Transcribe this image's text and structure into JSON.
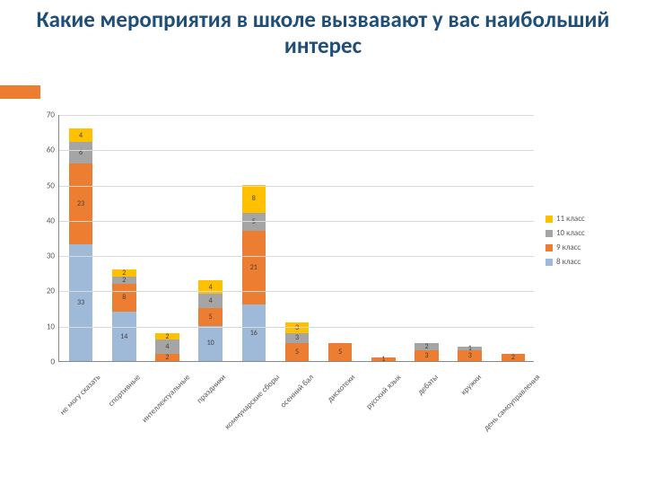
{
  "title": {
    "text": "Какие мероприятия в школе вызвавают у вас наибольший интерес",
    "fontsize": 25,
    "color": "#1f4e79"
  },
  "accent_bar_color": "#ed7d31",
  "chart": {
    "type": "stacked-bar",
    "ylim": [
      0,
      70
    ],
    "ytick_step": 10,
    "yticks": [
      0,
      10,
      20,
      30,
      40,
      50,
      60,
      70
    ],
    "grid_color": "#d9d9d9",
    "axis_color": "#888888",
    "background_color": "#ffffff",
    "tick_fontsize": 9,
    "label_fontsize": 9,
    "bar_width": 0.55,
    "series": [
      {
        "name": "8 класс",
        "color": "#9fb9d9"
      },
      {
        "name": "9 класс",
        "color": "#ed7d31"
      },
      {
        "name": "10 класс",
        "color": "#a5a5a5"
      },
      {
        "name": "11 класс",
        "color": "#ffc000"
      }
    ],
    "legend_order": [
      "11 класс",
      "10 класс",
      "9 класс",
      "8 класс"
    ],
    "categories": [
      "не могу сказать",
      "спортивные",
      "интеллектуальные",
      "праздники",
      "коммунарские сборы",
      "осенний бал",
      "дискотеки",
      "русский язык",
      "дебаты",
      "кружки",
      "день самоуправления"
    ],
    "data": {
      "8 класс": [
        33,
        14,
        0,
        10,
        16,
        0,
        0,
        0,
        0,
        0,
        0
      ],
      "9 класс": [
        23,
        8,
        2,
        5,
        21,
        5,
        5,
        1,
        3,
        3,
        2
      ],
      "10 класс": [
        6,
        2,
        4,
        4,
        5,
        3,
        0,
        0,
        2,
        1,
        0
      ],
      "11 класс": [
        4,
        2,
        2,
        4,
        8,
        3,
        0,
        0,
        0,
        0,
        0
      ]
    }
  }
}
